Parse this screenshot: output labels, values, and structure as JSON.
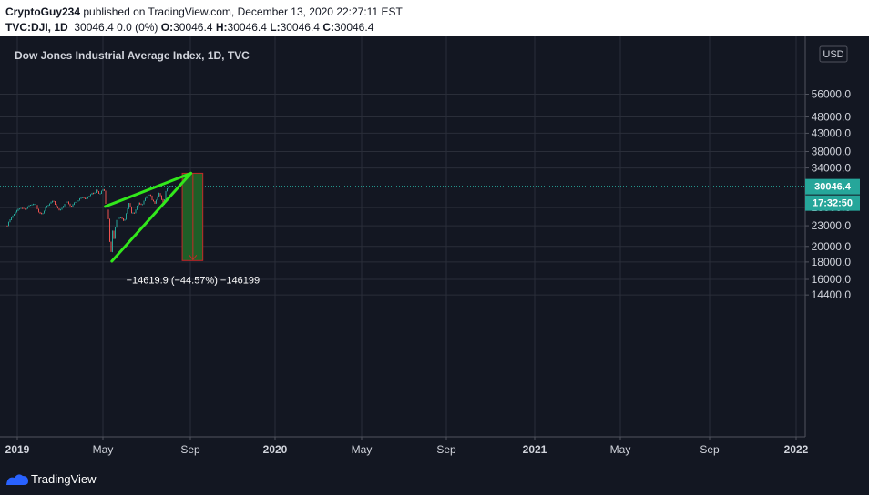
{
  "header": {
    "author": "CryptoGuy234",
    "published": " published on TradingView.com, December 13, 2020 22:27:11 EST",
    "symbol": "TVC:DJI, 1D",
    "quote": "30046.4 0.0 (0%)",
    "o_label": "O:",
    "o_value": "30046.4",
    "h_label": "H:",
    "h_value": "30046.4",
    "l_label": "L:",
    "l_value": "30046.4",
    "c_label": "C:",
    "c_value": "30046.4"
  },
  "chart_title": "Dow Jones Industrial Average Index, 1D, TVC",
  "currency": "USD",
  "last_price_label": "30046.4",
  "countdown_label": "17:32:50",
  "measure_label": "−14619.9 (−44.57%) −146199",
  "footer": {
    "brand": "TradingView"
  },
  "colors": {
    "background": "#131722",
    "grid": "#2a2e39",
    "up": "#26a69a",
    "down": "#ef5350",
    "trendline": "#32e81b",
    "measure_fill": "#1f5e27",
    "measure_border": "#c62828",
    "price_tag": "#26a69a",
    "text": "#d1d4dc"
  },
  "chart_data": {
    "type": "candlestick",
    "title": "Dow Jones Industrial Average Index, 1D, TVC",
    "price_axis": {
      "scale": "log",
      "ticks": [
        "56000.0",
        "48000.0",
        "43000.0",
        "38000.0",
        "34000.0",
        "26000.0",
        "23000.0",
        "20000.0",
        "18000.0",
        "16000.0",
        "14400.0"
      ]
    },
    "time_axis": {
      "ticks": [
        {
          "label": "2019",
          "bold": true
        },
        {
          "label": "May",
          "bold": false
        },
        {
          "label": "Sep",
          "bold": false
        },
        {
          "label": "2020",
          "bold": true
        },
        {
          "label": "May",
          "bold": false
        },
        {
          "label": "Sep",
          "bold": false
        },
        {
          "label": "2021",
          "bold": true
        },
        {
          "label": "May",
          "bold": false
        },
        {
          "label": "Sep",
          "bold": false
        },
        {
          "label": "2022",
          "bold": true
        }
      ]
    },
    "last_price": 30046.4,
    "price_series": [
      [
        "2019-01-01",
        23000
      ],
      [
        "2019-01-04",
        23400
      ],
      [
        "2019-01-10",
        23900
      ],
      [
        "2019-01-15",
        24100
      ],
      [
        "2019-01-22",
        24500
      ],
      [
        "2019-02-01",
        25000
      ],
      [
        "2019-02-15",
        25800
      ],
      [
        "2019-03-01",
        25900
      ],
      [
        "2019-03-20",
        25700
      ],
      [
        "2019-04-05",
        26400
      ],
      [
        "2019-04-23",
        26650
      ],
      [
        "2019-05-03",
        26500
      ],
      [
        "2019-05-13",
        25300
      ],
      [
        "2019-05-31",
        24800
      ],
      [
        "2019-06-14",
        26100
      ],
      [
        "2019-07-02",
        26800
      ],
      [
        "2019-07-15",
        27300
      ],
      [
        "2019-08-05",
        25800
      ],
      [
        "2019-08-15",
        25500
      ],
      [
        "2019-08-30",
        26400
      ],
      [
        "2019-09-12",
        27200
      ],
      [
        "2019-10-02",
        26100
      ],
      [
        "2019-10-15",
        27000
      ],
      [
        "2019-11-01",
        27300
      ],
      [
        "2019-11-15",
        28000
      ],
      [
        "2019-12-03",
        27500
      ],
      [
        "2019-12-27",
        28600
      ],
      [
        "2020-01-08",
        28700
      ],
      [
        "2020-01-17",
        29300
      ],
      [
        "2020-01-31",
        28300
      ],
      [
        "2020-02-12",
        29550
      ],
      [
        "2020-02-21",
        28990
      ],
      [
        "2020-02-28",
        25400
      ],
      [
        "2020-03-06",
        25900
      ],
      [
        "2020-03-12",
        21200
      ],
      [
        "2020-03-16",
        20200
      ],
      [
        "2020-03-23",
        18600
      ],
      [
        "2020-03-26",
        22500
      ],
      [
        "2020-04-01",
        20900
      ],
      [
        "2020-04-09",
        23700
      ],
      [
        "2020-04-17",
        24200
      ],
      [
        "2020-04-30",
        24350
      ],
      [
        "2020-05-14",
        23600
      ],
      [
        "2020-05-27",
        25500
      ],
      [
        "2020-06-08",
        27500
      ],
      [
        "2020-06-11",
        25100
      ],
      [
        "2020-06-26",
        25000
      ],
      [
        "2020-07-15",
        26870
      ],
      [
        "2020-07-31",
        26400
      ],
      [
        "2020-08-14",
        27900
      ],
      [
        "2020-08-31",
        28400
      ],
      [
        "2020-09-02",
        29100
      ],
      [
        "2020-09-08",
        27500
      ],
      [
        "2020-09-23",
        26800
      ],
      [
        "2020-10-09",
        28600
      ],
      [
        "2020-10-13",
        28700
      ],
      [
        "2020-10-28",
        26500
      ],
      [
        "2020-11-03",
        27500
      ],
      [
        "2020-11-09",
        29150
      ],
      [
        "2020-11-24",
        30050
      ],
      [
        "2020-12-04",
        30200
      ],
      [
        "2020-12-11",
        30046
      ]
    ],
    "trendlines": [
      {
        "name": "upper",
        "from": [
          "2020-02-24",
          26200
        ],
        "to": [
          "2021-02-24",
          32800
        ]
      },
      {
        "name": "lower",
        "from": [
          "2020-03-23",
          18100
        ],
        "to": [
          "2021-02-24",
          32800
        ]
      }
    ],
    "measure": {
      "from_date": "2021-01-18",
      "to_date": "2021-04-16",
      "top": 32800,
      "bottom": 18180,
      "change": -14619.9,
      "change_pct": -44.57
    }
  }
}
